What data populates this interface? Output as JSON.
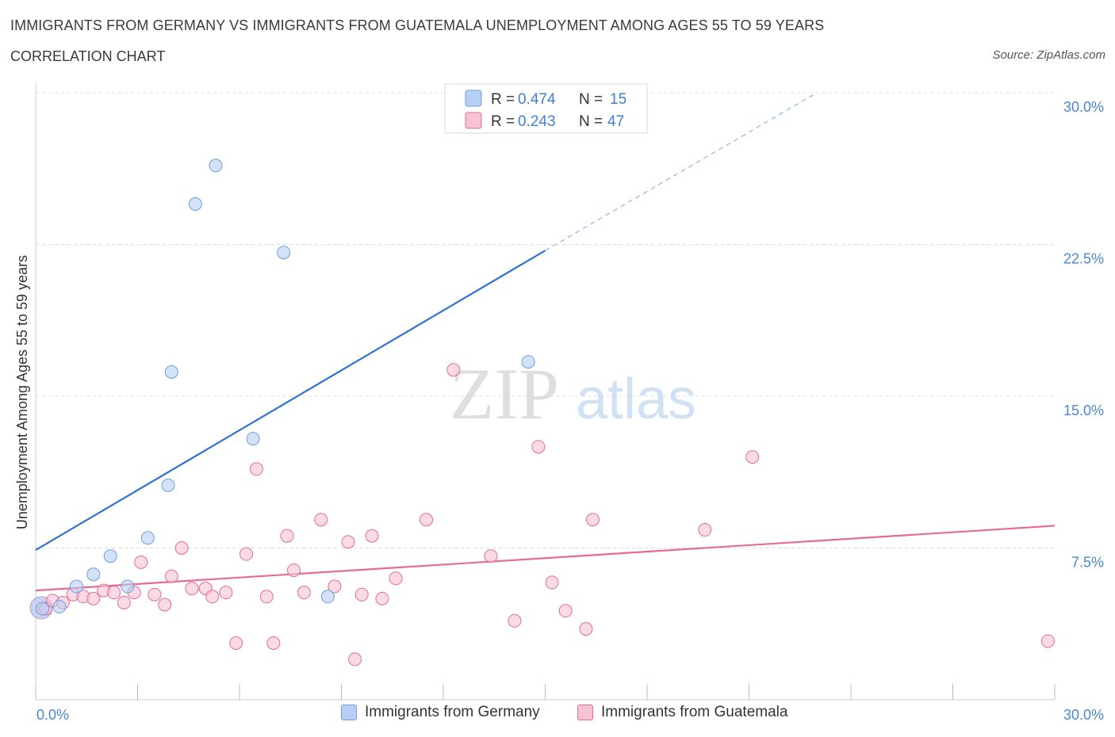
{
  "header": {
    "title": "IMMIGRANTS FROM GERMANY VS IMMIGRANTS FROM GUATEMALA UNEMPLOYMENT AMONG AGES 55 TO 59 YEARS",
    "subtitle": "CORRELATION CHART",
    "source": "Source: ZipAtlas.com"
  },
  "watermark": {
    "zip": "ZIP",
    "atlas": "atlas"
  },
  "chart_data": {
    "type": "scatter",
    "title": "IMMIGRANTS FROM GERMANY VS IMMIGRANTS FROM GUATEMALA UNEMPLOYMENT AMONG AGES 55 TO 59 YEARS",
    "subtitle": "CORRELATION CHART",
    "xlabel": "",
    "ylabel": "Unemployment Among Ages 55 to 59 years",
    "xlim": [
      0,
      30
    ],
    "ylim": [
      0,
      30
    ],
    "x_tick_labels": [
      "0.0%",
      "30.0%"
    ],
    "y_ticks": [
      7.5,
      15.0,
      22.5,
      30.0
    ],
    "y_tick_labels": [
      "7.5%",
      "15.0%",
      "22.5%",
      "30.0%"
    ],
    "grid": true,
    "legend_placement": "top-center",
    "series": [
      {
        "name": "Immigrants from Germany",
        "color": "#6d9ee6",
        "fill": "#b7cff3",
        "R": "0.474",
        "N": "15",
        "points": [
          [
            0.2,
            4.5
          ],
          [
            0.7,
            4.6
          ],
          [
            1.2,
            5.6
          ],
          [
            1.7,
            6.2
          ],
          [
            2.2,
            7.1
          ],
          [
            2.7,
            5.6
          ],
          [
            3.3,
            8.0
          ],
          [
            3.9,
            10.6
          ],
          [
            4.0,
            16.2
          ],
          [
            4.7,
            24.5
          ],
          [
            5.3,
            26.4
          ],
          [
            6.4,
            12.9
          ],
          [
            7.3,
            22.1
          ],
          [
            8.6,
            5.1
          ],
          [
            14.5,
            16.7
          ]
        ],
        "trend": {
          "x": [
            0,
            15
          ],
          "y": [
            7.4,
            22.2
          ],
          "dashed_to": [
            23.0,
            30.0
          ]
        }
      },
      {
        "name": "Immigrants from Guatemala",
        "color": "#e56b95",
        "fill": "#f7c3d3",
        "R": "0.243",
        "N": "47",
        "points": [
          [
            0.3,
            4.5
          ],
          [
            0.5,
            4.9
          ],
          [
            0.8,
            4.8
          ],
          [
            1.1,
            5.2
          ],
          [
            1.4,
            5.1
          ],
          [
            1.7,
            5.0
          ],
          [
            2.0,
            5.4
          ],
          [
            2.3,
            5.3
          ],
          [
            2.6,
            4.8
          ],
          [
            2.9,
            5.3
          ],
          [
            3.1,
            6.8
          ],
          [
            3.5,
            5.2
          ],
          [
            3.8,
            4.7
          ],
          [
            4.0,
            6.1
          ],
          [
            4.3,
            7.5
          ],
          [
            4.6,
            5.5
          ],
          [
            5.0,
            5.5
          ],
          [
            5.2,
            5.1
          ],
          [
            5.6,
            5.3
          ],
          [
            5.9,
            2.8
          ],
          [
            6.2,
            7.2
          ],
          [
            6.5,
            11.4
          ],
          [
            6.8,
            5.1
          ],
          [
            7.0,
            2.8
          ],
          [
            7.4,
            8.1
          ],
          [
            7.6,
            6.4
          ],
          [
            7.9,
            5.3
          ],
          [
            8.4,
            8.9
          ],
          [
            8.8,
            5.6
          ],
          [
            9.2,
            7.8
          ],
          [
            9.4,
            2.0
          ],
          [
            9.6,
            5.2
          ],
          [
            9.9,
            8.1
          ],
          [
            10.2,
            5.0
          ],
          [
            10.6,
            6.0
          ],
          [
            11.5,
            8.9
          ],
          [
            12.3,
            16.3
          ],
          [
            13.4,
            7.1
          ],
          [
            14.1,
            3.9
          ],
          [
            14.8,
            12.5
          ],
          [
            15.2,
            5.8
          ],
          [
            15.6,
            4.4
          ],
          [
            16.2,
            3.5
          ],
          [
            16.4,
            8.9
          ],
          [
            19.7,
            8.4
          ],
          [
            21.1,
            12.0
          ],
          [
            29.8,
            2.9
          ]
        ],
        "trend": {
          "x": [
            0,
            30
          ],
          "y": [
            5.4,
            8.6
          ]
        }
      }
    ]
  }
}
